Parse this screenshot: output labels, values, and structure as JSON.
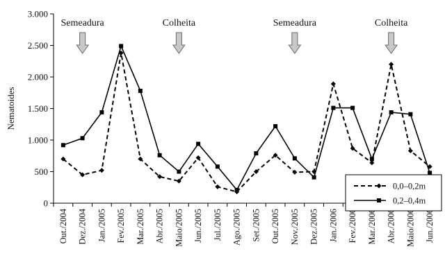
{
  "chart_data": {
    "type": "line",
    "ylabel": "Nematoides",
    "ylim": [
      0,
      3000
    ],
    "yticks": [
      0,
      500,
      1000,
      1500,
      2000,
      2500,
      3000
    ],
    "ytick_labels": [
      "0",
      "500",
      "1.000",
      "1.500",
      "2.000",
      "2.500",
      "3.000"
    ],
    "grid": false,
    "legend": "bottom-right",
    "categories": [
      "Out./2004",
      "Dez./2004",
      "Jan./2005",
      "Fev./2005",
      "Mar./2005",
      "Abr./2005",
      "Maio/2005",
      "Jun./2005",
      "Jul./2005",
      "Ago./2005",
      "Set./2005",
      "Out./2005",
      "Nov./2005",
      "Dez./2005",
      "Jan./2006",
      "Fev./2006",
      "Mar./2006",
      "Abr./2006",
      "Maio/2006",
      "Jun./2006"
    ],
    "series": [
      {
        "name": "0,0–0,2m",
        "style": "dashed",
        "marker": "diamond",
        "color": "#000000",
        "values": [
          700,
          450,
          520,
          2380,
          700,
          420,
          350,
          720,
          260,
          180,
          500,
          760,
          490,
          500,
          1890,
          870,
          640,
          2200,
          830,
          580
        ]
      },
      {
        "name": "0,2–0,4m",
        "style": "solid",
        "marker": "square",
        "color": "#000000",
        "values": [
          920,
          1030,
          1440,
          2490,
          1780,
          760,
          500,
          940,
          580,
          210,
          790,
          1220,
          710,
          410,
          1510,
          1510,
          700,
          1440,
          1410,
          480
        ]
      }
    ],
    "annotations": [
      {
        "text": "Semeadura",
        "category": "Dez./2004"
      },
      {
        "text": "Colheita",
        "category": "Maio/2005"
      },
      {
        "text": "Semeadura",
        "category": "Nov./2005"
      },
      {
        "text": "Colheita",
        "category": "Abr./2006"
      }
    ]
  }
}
